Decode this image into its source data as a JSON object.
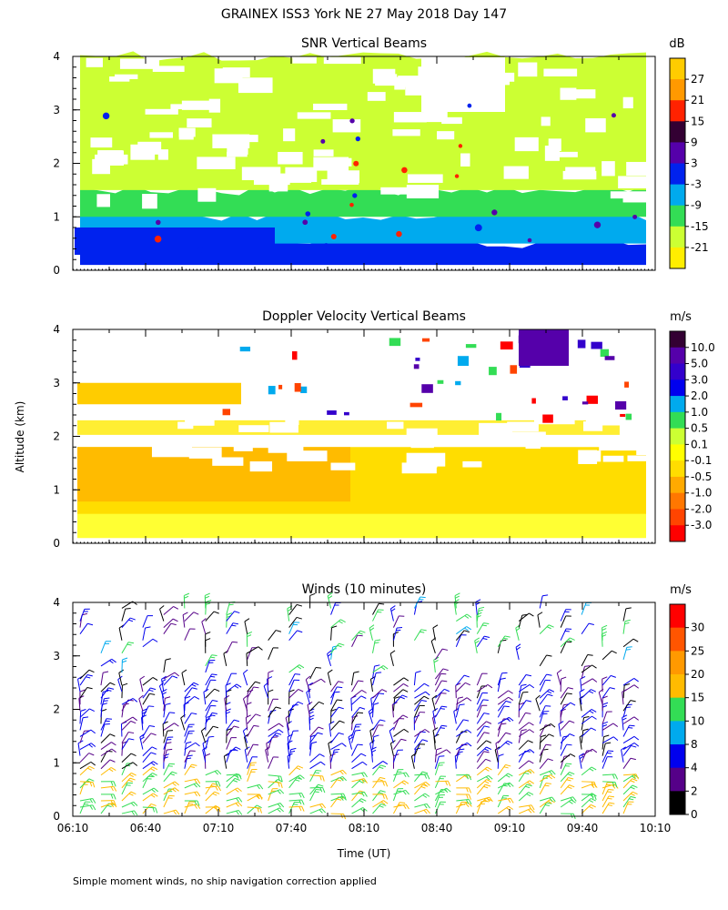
{
  "header": {
    "title": "GRAINEX ISS3 York NE  27 May 2018 Day 147",
    "ylabel": "Altitude (km)",
    "xlabel": "Time (UT)",
    "footnote": "Simple moment winds, no ship navigation correction applied"
  },
  "chart_data": [
    {
      "type": "heatmap",
      "title": "SNR Vertical Beams",
      "x_ticks": [
        "06:10",
        "06:40",
        "07:10",
        "07:40",
        "08:10",
        "08:40",
        "09:10",
        "09:40",
        "10:10"
      ],
      "y_ticks": [
        "0",
        "1",
        "2",
        "3",
        "4"
      ],
      "ylim": [
        0,
        4
      ],
      "colorbar": {
        "unit": "dB",
        "labels": [
          "27",
          "21",
          "15",
          "9",
          "3",
          "-3",
          "-9",
          "-15",
          "-21"
        ],
        "colors": [
          "#ffcc00",
          "#ff9900",
          "#ff2200",
          "#330033",
          "#5500aa",
          "#0022ee",
          "#00aaee",
          "#33dd55",
          "#ccff33",
          "#ffee00"
        ]
      },
      "bands": [
        {
          "from": 0.1,
          "to": 0.5,
          "level": "-3",
          "color": "#0022ee"
        },
        {
          "from": 0.5,
          "to": 1.0,
          "level": "-9",
          "color": "#00aaee"
        },
        {
          "from": 1.0,
          "to": 1.5,
          "level": "-15",
          "color": "#33dd55"
        },
        {
          "from": 1.5,
          "to": 4.0,
          "level": "-21",
          "color": "#ccff33"
        }
      ]
    },
    {
      "type": "heatmap",
      "title": "Doppler Velocity Vertical Beams",
      "x_ticks": [
        "06:10",
        "06:40",
        "07:10",
        "07:40",
        "08:10",
        "08:40",
        "09:10",
        "09:40",
        "10:10"
      ],
      "y_ticks": [
        "0",
        "1",
        "2",
        "3",
        "4"
      ],
      "ylim": [
        0,
        4
      ],
      "colorbar": {
        "unit": "m/s",
        "labels": [
          "10.0",
          "5.0",
          "3.0",
          "2.0",
          "1.0",
          "0.5",
          "0.1",
          "-0.1",
          "-0.5",
          "-1.0",
          "-2.0",
          "-3.0"
        ],
        "colors": [
          "#330033",
          "#5500aa",
          "#3300cc",
          "#0000ee",
          "#00aaee",
          "#33dd55",
          "#ccff33",
          "#ffff00",
          "#ffdd00",
          "#ffaa00",
          "#ff7700",
          "#ff4400",
          "#ff0000"
        ]
      },
      "bands": [
        {
          "from": 0.1,
          "to": 1.8,
          "level": "-0.5",
          "color": "#ffcc00"
        },
        {
          "from": 2.6,
          "to": 3.0,
          "level": "-0.5",
          "color": "#ffcc00"
        }
      ]
    },
    {
      "type": "barbs",
      "title": "Winds (10 minutes)",
      "x_ticks": [
        "06:10",
        "06:40",
        "07:10",
        "07:40",
        "08:10",
        "08:40",
        "09:10",
        "09:40",
        "10:10"
      ],
      "y_ticks": [
        "0",
        "1",
        "2",
        "3",
        "4"
      ],
      "ylim": [
        0,
        4
      ],
      "colorbar": {
        "unit": "m/s",
        "labels": [
          "30",
          "25",
          "20",
          "15",
          "10",
          "8",
          "4",
          "2",
          "0"
        ],
        "colors": [
          "#ff0000",
          "#ff5500",
          "#ff9900",
          "#ffbb00",
          "#33dd55",
          "#00aaee",
          "#0000ee",
          "#550088",
          "#000000"
        ]
      },
      "speed_bands": [
        {
          "from": 0.0,
          "to": 0.8,
          "speed_ms": 15
        },
        {
          "from": 0.8,
          "to": 2.6,
          "speed_ms": 4
        },
        {
          "from": 2.6,
          "to": 4.0,
          "speed_ms": 6
        }
      ]
    }
  ]
}
